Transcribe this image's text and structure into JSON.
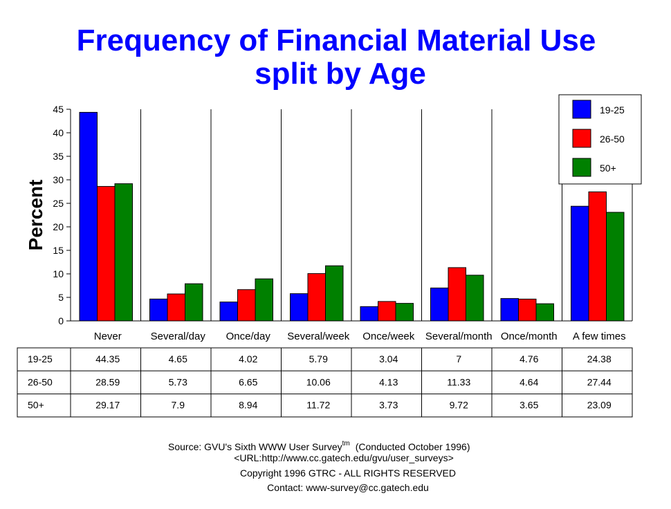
{
  "chart_data": {
    "type": "bar",
    "title": "Frequency of Financial Material Use",
    "subtitle": "split by Age",
    "ylabel": "Percent",
    "xlabel": "",
    "ylim": [
      0,
      45
    ],
    "yticks": [
      0,
      5,
      10,
      15,
      20,
      25,
      30,
      35,
      40,
      45
    ],
    "grid": "vertical separators between categories",
    "legend": "top-right",
    "categories": [
      "Never",
      "Several/day",
      "Once/day",
      "Several/week",
      "Once/week",
      "Several/month",
      "Once/month",
      "A few times"
    ],
    "series": [
      {
        "name": "19-25",
        "color": "#0000ff",
        "values": [
          44.35,
          4.65,
          4.02,
          5.79,
          3.04,
          7,
          4.76,
          24.38
        ]
      },
      {
        "name": "26-50",
        "color": "#ff0000",
        "values": [
          28.59,
          5.73,
          6.65,
          10.06,
          4.13,
          11.33,
          4.64,
          27.44
        ]
      },
      {
        "name": "50+",
        "color": "#008000",
        "values": [
          29.17,
          7.9,
          8.94,
          11.72,
          3.73,
          9.72,
          3.65,
          23.09
        ]
      }
    ],
    "table_values": [
      [
        "44.35",
        "4.65",
        "4.02",
        "5.79",
        "3.04",
        "7",
        "4.76",
        "24.38"
      ],
      [
        "28.59",
        "5.73",
        "6.65",
        "10.06",
        "4.13",
        "11.33",
        "4.64",
        "27.44"
      ],
      [
        "29.17",
        "7.9",
        "8.94",
        "11.72",
        "3.73",
        "9.72",
        "3.65",
        "23.09"
      ]
    ]
  },
  "footer": {
    "source": "Source: GVU's Sixth WWW User Survey",
    "tm": "tm",
    "conducted": "(Conducted October 1996)",
    "url": "<URL:http://www.cc.gatech.edu/gvu/user_surveys>",
    "copyright": "Copyright 1996 GTRC -  ALL RIGHTS RESERVED",
    "contact": "Contact: www-survey@cc.gatech.edu"
  }
}
